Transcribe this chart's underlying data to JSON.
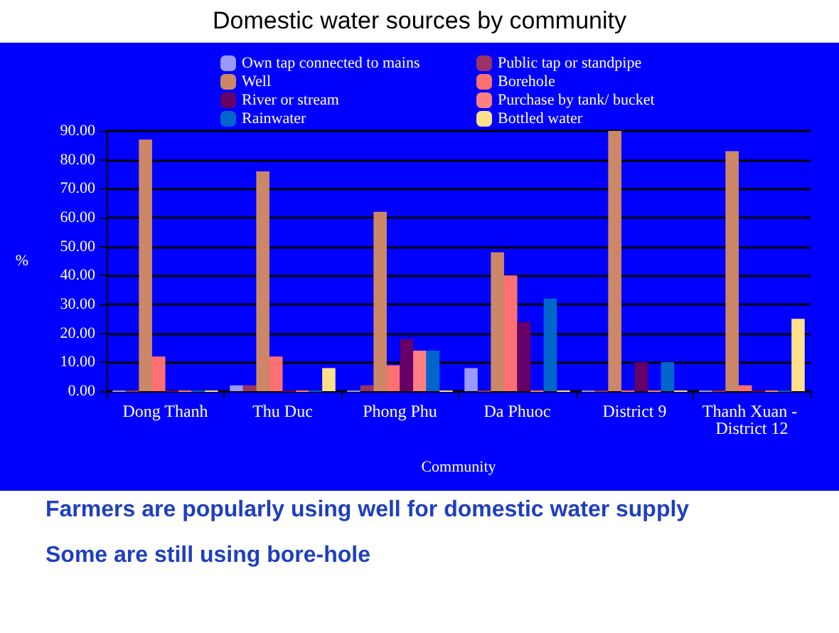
{
  "chart_data": {
    "type": "bar",
    "title": "Domestic water sources by community",
    "xlabel": "Community",
    "ylabel": "%",
    "categories": [
      "Dong Thanh",
      "Thu Duc",
      "Phong Phu",
      "Da Phuoc",
      "District 9",
      "Thanh Xuan - District 12"
    ],
    "series": [
      {
        "name": "Own tap connected to mains",
        "color": "#9999ff",
        "values": [
          0,
          2,
          0,
          8,
          0,
          0
        ]
      },
      {
        "name": "Public tap or standpipe",
        "color": "#993366",
        "values": [
          0,
          2,
          2,
          0,
          0,
          0
        ]
      },
      {
        "name": "Well",
        "color": "#cc8866",
        "values": [
          87,
          76,
          62,
          48,
          90,
          83
        ]
      },
      {
        "name": "Borehole",
        "color": "#ff7070",
        "values": [
          12,
          12,
          9,
          40,
          0,
          2
        ]
      },
      {
        "name": "River or stream",
        "color": "#660066",
        "values": [
          0,
          0,
          18,
          24,
          10,
          0
        ]
      },
      {
        "name": "Purchase by tank/ bucket",
        "color": "#ff8080",
        "values": [
          0,
          0,
          14,
          0,
          0,
          0
        ]
      },
      {
        "name": "Rainwater",
        "color": "#0066cc",
        "values": [
          0,
          0,
          14,
          32,
          10,
          0
        ]
      },
      {
        "name": "Bottled water",
        "color": "#ffe08a",
        "values": [
          0,
          8,
          0,
          0,
          0,
          25
        ]
      }
    ],
    "ylim": [
      0,
      90
    ],
    "yticks": [
      {
        "value": 0,
        "label": "0.00"
      },
      {
        "value": 10,
        "label": "10.00"
      },
      {
        "value": 20,
        "label": "20.00"
      },
      {
        "value": 30,
        "label": "30.00"
      },
      {
        "value": 40,
        "label": "40.00"
      },
      {
        "value": 50,
        "label": "50.00"
      },
      {
        "value": 60,
        "label": "60.00"
      },
      {
        "value": 70,
        "label": "70.00"
      },
      {
        "value": 80,
        "label": "80.00"
      },
      {
        "value": 90,
        "label": "90.00"
      }
    ],
    "grid": "y",
    "legend": "top",
    "annotations": [
      "Farmers are popularly using well for domestic water supply",
      "Some are still using bore-hole"
    ]
  }
}
